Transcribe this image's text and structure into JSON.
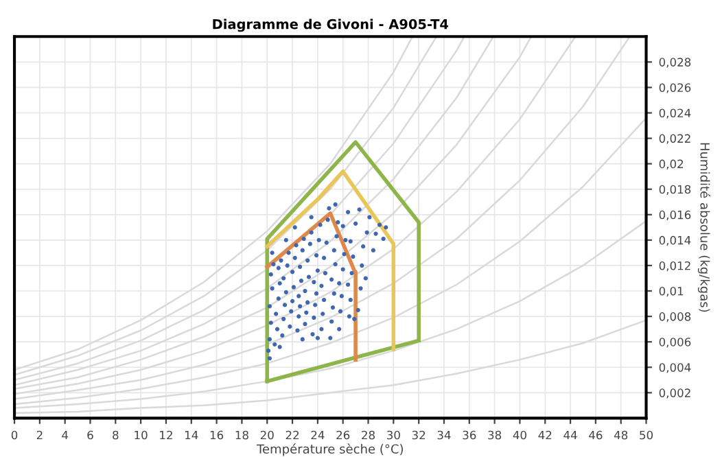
{
  "chart_data": {
    "type": "line",
    "title": "Diagramme de Givoni - A905-T4",
    "xlabel": "Température sèche (°C)",
    "ylabel": "Humidité absolue (kg/kgas)",
    "xlim": [
      0,
      50
    ],
    "ylim": [
      0,
      0.03
    ],
    "xticks": [
      0,
      2,
      4,
      6,
      8,
      10,
      12,
      14,
      16,
      18,
      20,
      22,
      24,
      26,
      28,
      30,
      32,
      34,
      36,
      38,
      40,
      42,
      44,
      46,
      48,
      50
    ],
    "yticks": [
      {
        "value": 0.002,
        "label": "0,002"
      },
      {
        "value": 0.004,
        "label": "0,004"
      },
      {
        "value": 0.006,
        "label": "0,006"
      },
      {
        "value": 0.008,
        "label": "0,008"
      },
      {
        "value": 0.01,
        "label": "0,01"
      },
      {
        "value": 0.012,
        "label": "0,012"
      },
      {
        "value": 0.014,
        "label": "0,014"
      },
      {
        "value": 0.016,
        "label": "0,016"
      },
      {
        "value": 0.018,
        "label": "0,018"
      },
      {
        "value": 0.02,
        "label": "0,02"
      },
      {
        "value": 0.022,
        "label": "0,022"
      },
      {
        "value": 0.024,
        "label": "0,024"
      },
      {
        "value": 0.026,
        "label": "0,026"
      },
      {
        "value": 0.028,
        "label": "0,028"
      }
    ],
    "grid": true,
    "legend": false,
    "marker": "none",
    "line_style": "solid",
    "series": [
      {
        "type": "line",
        "color": "#d9d9d9",
        "x": [
          0,
          5,
          10,
          15,
          20,
          25,
          30,
          35,
          40,
          45,
          50
        ],
        "values": [
          0.0004,
          0.0005,
          0.0008,
          0.001,
          0.0014,
          0.002,
          0.0026,
          0.0035,
          0.0046,
          0.0059,
          0.0077
        ]
      },
      {
        "type": "line",
        "color": "#d9d9d9",
        "x": [
          0,
          5,
          10,
          15,
          20,
          25,
          30,
          35,
          40,
          45,
          50
        ],
        "values": [
          0.0008,
          0.0011,
          0.0015,
          0.0021,
          0.0029,
          0.0039,
          0.0053,
          0.007,
          0.0092,
          0.012,
          0.0155
        ]
      },
      {
        "type": "line",
        "color": "#d9d9d9",
        "x": [
          0,
          5,
          10,
          15,
          20,
          25,
          30,
          35,
          40,
          45,
          50
        ],
        "values": [
          0.0011,
          0.0016,
          0.0023,
          0.0032,
          0.0043,
          0.0059,
          0.0079,
          0.0105,
          0.0139,
          0.0182,
          0.0236
        ]
      },
      {
        "type": "line",
        "color": "#d9d9d9",
        "x": [
          0,
          5,
          10,
          15,
          20,
          25,
          30,
          35,
          40,
          45,
          48.7
        ],
        "values": [
          0.0015,
          0.0022,
          0.003,
          0.0042,
          0.0058,
          0.0079,
          0.0106,
          0.0141,
          0.0187,
          0.0245,
          0.03
        ]
      },
      {
        "type": "line",
        "color": "#d9d9d9",
        "x": [
          0,
          5,
          10,
          15,
          20,
          25,
          30,
          35,
          40,
          44.4
        ],
        "values": [
          0.0019,
          0.0027,
          0.0038,
          0.0053,
          0.0073,
          0.0099,
          0.0133,
          0.0178,
          0.0235,
          0.03
        ]
      },
      {
        "type": "line",
        "color": "#d9d9d9",
        "x": [
          0,
          5,
          10,
          15,
          20,
          25,
          30,
          35,
          40,
          40.9
        ],
        "values": [
          0.0023,
          0.0032,
          0.0046,
          0.0064,
          0.0087,
          0.0119,
          0.0161,
          0.0215,
          0.0284,
          0.03
        ]
      },
      {
        "type": "line",
        "color": "#d9d9d9",
        "x": [
          0,
          5,
          10,
          15,
          20,
          25,
          30,
          35,
          37.9
        ],
        "values": [
          0.0026,
          0.0038,
          0.0053,
          0.0074,
          0.0102,
          0.0139,
          0.0188,
          0.0252,
          0.03
        ]
      },
      {
        "type": "line",
        "color": "#d9d9d9",
        "x": [
          0,
          5,
          10,
          15,
          20,
          25,
          30,
          35,
          35.6
        ],
        "values": [
          0.003,
          0.0043,
          0.0061,
          0.0085,
          0.0117,
          0.016,
          0.0216,
          0.0289,
          0.03
        ]
      },
      {
        "type": "line",
        "color": "#d9d9d9",
        "x": [
          0,
          5,
          10,
          15,
          20,
          25,
          30,
          33.4
        ],
        "values": [
          0.0034,
          0.0049,
          0.0069,
          0.0096,
          0.0132,
          0.018,
          0.0244,
          0.03
        ]
      },
      {
        "type": "line",
        "color": "#d9d9d9",
        "x": [
          0,
          5,
          10,
          15,
          20,
          25,
          30,
          31.5
        ],
        "values": [
          0.0038,
          0.0054,
          0.0077,
          0.0107,
          0.0147,
          0.02,
          0.0272,
          0.03
        ]
      },
      {
        "type": "scatter",
        "color": "#3f66b0",
        "marker": "circle",
        "x": [
          20.1,
          20.2,
          20.3,
          20.2,
          20.4,
          20.3,
          20.5,
          20.6,
          20.8,
          20.7,
          20.9,
          21.0,
          20.9,
          21.1,
          21.2,
          21.3,
          21.4,
          21.5,
          21.3,
          21.6,
          21.7,
          21.8,
          21.9,
          22.0,
          22.1,
          22.0,
          22.2,
          22.3,
          22.4,
          22.5,
          22.6,
          22.5,
          22.7,
          22.6,
          22.8,
          22.9,
          23.0,
          23.1,
          23.2,
          23.0,
          23.3,
          23.2,
          23.4,
          23.5,
          23.6,
          23.7,
          23.8,
          23.9,
          23.7,
          24.0,
          23.9,
          24.1,
          24.2,
          24.3,
          24.4,
          24.5,
          24.3,
          24.6,
          24.5,
          24.7,
          24.8,
          24.9,
          25.0,
          25.1,
          25.2,
          25.3,
          25.1,
          25.4,
          25.3,
          25.5,
          25.6,
          25.4,
          25.7,
          25.8,
          25.9,
          25.7,
          26.0,
          26.1,
          26.2,
          26.0,
          26.4,
          26.5,
          26.6,
          26.4,
          26.7,
          26.8,
          26.6,
          27.0,
          27.3,
          27.2,
          27.4,
          27.5,
          27.6,
          27.9,
          28.1,
          28.4,
          28.6,
          28.9,
          29.2,
          29.4,
          27.8,
          26.9,
          21.0,
          20.2,
          22.8,
          24.0,
          21.5,
          22.2,
          23.5,
          20.4
        ],
        "values": [
          0.0053,
          0.0062,
          0.0075,
          0.0088,
          0.0102,
          0.0113,
          0.0121,
          0.0058,
          0.007,
          0.0082,
          0.0094,
          0.0106,
          0.0118,
          0.0124,
          0.0065,
          0.0078,
          0.0089,
          0.0099,
          0.011,
          0.012,
          0.013,
          0.0072,
          0.0084,
          0.0092,
          0.0103,
          0.0115,
          0.0126,
          0.0136,
          0.0069,
          0.008,
          0.0088,
          0.0096,
          0.0108,
          0.0119,
          0.0132,
          0.0141,
          0.0074,
          0.0083,
          0.0091,
          0.01,
          0.0111,
          0.0124,
          0.0137,
          0.0146,
          0.0066,
          0.0079,
          0.0089,
          0.0098,
          0.0107,
          0.0116,
          0.0128,
          0.014,
          0.0152,
          0.007,
          0.0082,
          0.0093,
          0.0104,
          0.0114,
          0.0126,
          0.0138,
          0.0156,
          0.0165,
          0.0063,
          0.0076,
          0.0087,
          0.0098,
          0.0109,
          0.0121,
          0.0132,
          0.0143,
          0.0154,
          0.0168,
          0.007,
          0.0084,
          0.0096,
          0.0106,
          0.0117,
          0.0129,
          0.014,
          0.0151,
          0.0162,
          0.008,
          0.0093,
          0.0105,
          0.0114,
          0.0127,
          0.0139,
          0.0153,
          0.0164,
          0.0085,
          0.0102,
          0.012,
          0.0135,
          0.0146,
          0.0158,
          0.0132,
          0.0145,
          0.0152,
          0.0141,
          0.015,
          0.011,
          0.0078,
          0.0056,
          0.0047,
          0.0062,
          0.0063,
          0.014,
          0.015,
          0.0158,
          0.013
        ]
      },
      {
        "type": "line",
        "color": "#8db54a",
        "x": [
          20,
          20,
          27,
          32,
          32
        ],
        "values": [
          0.0029,
          0.0141,
          0.0217,
          0.0154,
          0.0061
        ]
      },
      {
        "color": "#8db54a",
        "x": [
          20,
          32
        ],
        "values": [
          0.0029,
          0.0061
        ]
      },
      {
        "type": "line",
        "color": "#e8c65a",
        "x": [
          30,
          30,
          26,
          24,
          20
        ],
        "values": [
          0.0054,
          0.0137,
          0.0194,
          0.0172,
          0.0135
        ]
      },
      {
        "type": "line",
        "color": "#e0884a",
        "x": [
          20,
          25,
          26.9,
          27,
          27
        ],
        "values": [
          0.0119,
          0.0161,
          0.0116,
          0.0115,
          0.0046
        ]
      }
    ]
  }
}
